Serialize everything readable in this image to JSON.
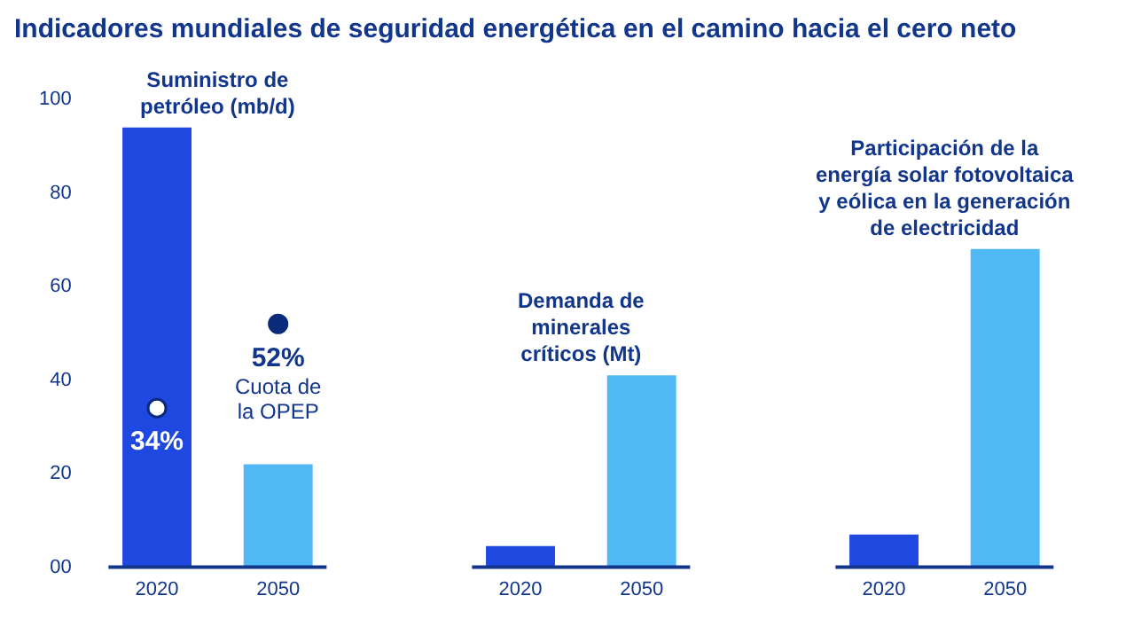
{
  "chart_data": {
    "type": "bar",
    "title": "Indicadores mundiales de seguridad energética en el camino hacia el cero neto",
    "categories": [
      "2020",
      "2050",
      null,
      "2020",
      "2050",
      null,
      "2020",
      "2050"
    ],
    "series": [
      {
        "colors": [
          "#1f48e0",
          "#50b8f5",
          null,
          "#1f48e0",
          "#50b8f5",
          null,
          "#1f48e0",
          "#50b8f5"
        ],
        "values": [
          94,
          22,
          null,
          4.5,
          41,
          null,
          7,
          68
        ]
      },
      {
        "type": "scatter",
        "name": "Cuota de la OPEP",
        "color": "#0a2a7a",
        "colors": [
          "#ffffff",
          "#0a2a7a",
          null,
          null,
          null,
          null,
          null,
          null
        ],
        "values": [
          34,
          52,
          null,
          null,
          null,
          null,
          null,
          null
        ],
        "value_labels": [
          "34%",
          "52%",
          null,
          null,
          null,
          null,
          null,
          null
        ]
      }
    ],
    "annotations": [
      "Suministro de petróleo (mb/d)",
      "Demanda de minerales críticos (Mt)",
      "Participación de la energía solar fotovoltaica y eólica en la generación de electricidad"
    ],
    "ylim": [
      0,
      100
    ],
    "yticks": [
      {
        "value": 0,
        "label": "00"
      },
      20,
      40,
      60,
      80,
      100
    ],
    "grid": false,
    "legend": false,
    "marker": "circle"
  }
}
